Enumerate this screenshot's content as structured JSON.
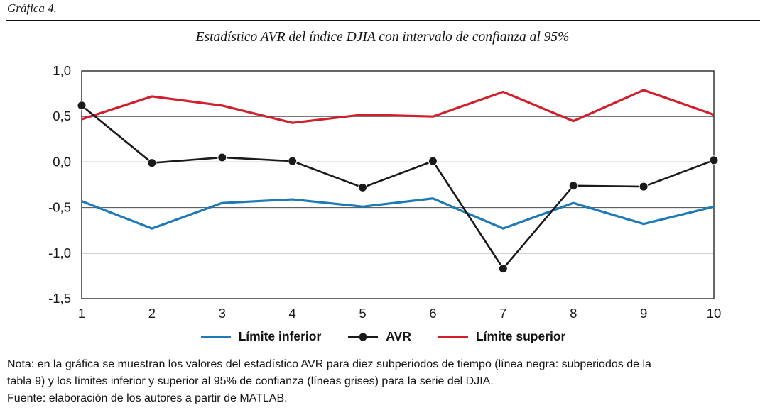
{
  "figure": {
    "label": "Gráfica 4.",
    "title": "Estadístico AVR del índice DJIA con intervalo de confianza al 95%"
  },
  "chart_data": {
    "type": "line",
    "title": "Estadístico AVR del índice DJIA con intervalo de confianza al 95%",
    "x": [
      1,
      2,
      3,
      4,
      5,
      6,
      7,
      8,
      9,
      10
    ],
    "xtick_labels": [
      "1",
      "2",
      "3",
      "4",
      "5",
      "6",
      "7",
      "8",
      "9",
      "10"
    ],
    "ylim": [
      -1.5,
      1.0
    ],
    "yticks": [
      1.0,
      0.5,
      0.0,
      -0.5,
      -1.0,
      -1.5
    ],
    "ytick_labels": [
      "1,0",
      "0,5",
      "0,0",
      "-0,5",
      "-1,0",
      "-1,5"
    ],
    "grid": true,
    "legend_position": "bottom",
    "series": [
      {
        "name": "Límite inferior",
        "color": "#1d7ab5",
        "marker": false,
        "values": [
          -0.43,
          -0.73,
          -0.45,
          -0.41,
          -0.49,
          -0.4,
          -0.73,
          -0.45,
          -0.68,
          -0.49
        ]
      },
      {
        "name": "AVR",
        "color": "#1a1a1a",
        "marker": true,
        "values": [
          0.62,
          -0.01,
          0.05,
          0.01,
          -0.28,
          0.01,
          -1.17,
          -0.26,
          -0.27,
          0.02
        ]
      },
      {
        "name": "Límite superior",
        "color": "#d11f2d",
        "marker": false,
        "values": [
          0.47,
          0.72,
          0.62,
          0.43,
          0.52,
          0.5,
          0.77,
          0.45,
          0.79,
          0.52
        ]
      }
    ]
  },
  "legend": {
    "items": [
      {
        "label": "Límite inferior",
        "color": "#1d7ab5",
        "marker": false
      },
      {
        "label": "AVR",
        "color": "#1a1a1a",
        "marker": true
      },
      {
        "label": "Límite superior",
        "color": "#d11f2d",
        "marker": false
      }
    ]
  },
  "notes": {
    "nota_line1": "Nota: en la gráfica se muestran los valores del estadístico AVR para diez subperiodos de tiempo (línea negra: subperiodos de la",
    "nota_line2": "tabla 9) y los límites inferior y superior al 95% de confianza (líneas grises) para la serie del DJIA.",
    "fuente": "Fuente: elaboración de los autores a partir de MATLAB."
  }
}
